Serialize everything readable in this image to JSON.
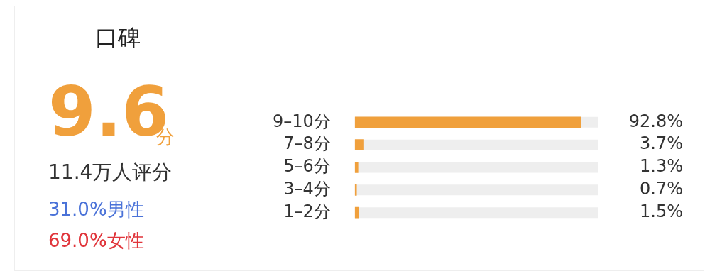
{
  "chart_data": {
    "type": "bar",
    "orientation": "horizontal",
    "title": "口碑",
    "annotations": [
      "9.6",
      "分",
      "11.4万人评分",
      "31.0%男性",
      "69.0%女性"
    ],
    "categories": [
      "9–10分",
      "7–8分",
      "5–6分",
      "3–4分",
      "1–2分"
    ],
    "values": [
      92.8,
      3.7,
      1.3,
      0.7,
      1.5
    ],
    "value_labels": [
      "92.8%",
      "3.7%",
      "1.3%",
      "0.7%",
      "1.5%"
    ],
    "color": "#f0a03c",
    "xlim": [
      0,
      100
    ],
    "grid": false,
    "legend": false,
    "tick_labels": "y"
  }
}
